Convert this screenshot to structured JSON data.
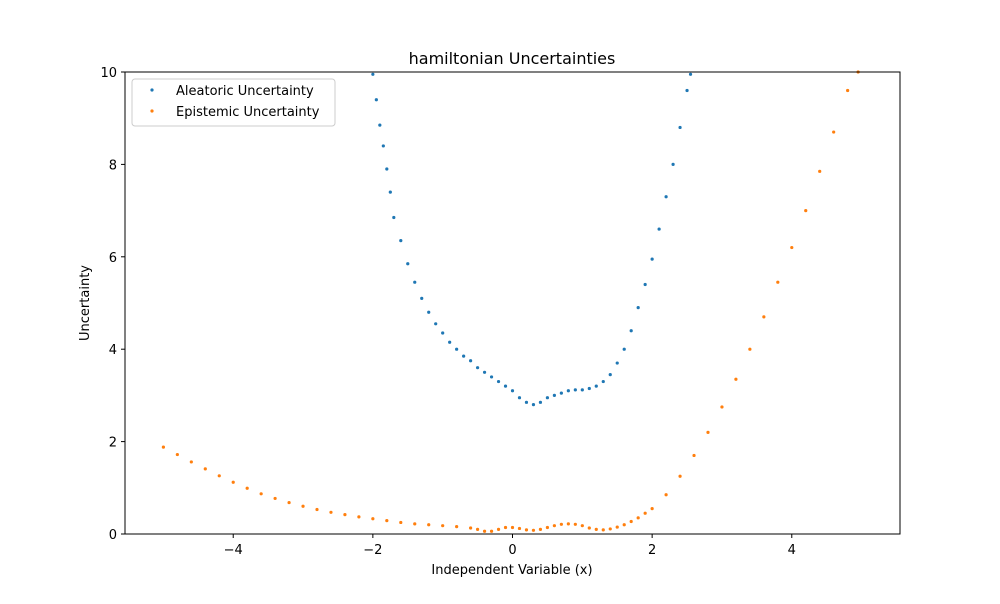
{
  "chart_data": {
    "type": "scatter",
    "title": "hamiltonian Uncertainties",
    "xlabel": "Independent Variable (x)",
    "ylabel": "Uncertainty",
    "xlim": [
      -5.55,
      5.55
    ],
    "ylim": [
      0,
      10
    ],
    "xticks": [
      -4,
      -2,
      0,
      2,
      4
    ],
    "xtick_labels": [
      "−4",
      "−2",
      "0",
      "2",
      "4"
    ],
    "yticks": [
      0,
      2,
      4,
      6,
      8,
      10
    ],
    "ytick_labels": [
      "0",
      "2",
      "4",
      "6",
      "8",
      "10"
    ],
    "grid": false,
    "legend_position": "upper-left",
    "series": [
      {
        "name": "Aleatoric Uncertainty",
        "color": "#1f77b4",
        "x": [
          -2.0,
          -1.95,
          -1.9,
          -1.85,
          -1.8,
          -1.75,
          -1.7,
          -1.6,
          -1.5,
          -1.4,
          -1.3,
          -1.2,
          -1.1,
          -1.0,
          -0.9,
          -0.8,
          -0.7,
          -0.6,
          -0.5,
          -0.4,
          -0.3,
          -0.2,
          -0.1,
          0.0,
          0.1,
          0.2,
          0.3,
          0.4,
          0.5,
          0.6,
          0.7,
          0.8,
          0.9,
          1.0,
          1.1,
          1.2,
          1.3,
          1.4,
          1.5,
          1.6,
          1.7,
          1.8,
          1.9,
          2.0,
          2.1,
          2.2,
          2.3,
          2.4,
          2.5,
          2.55
        ],
        "y": [
          9.95,
          9.4,
          8.85,
          8.4,
          7.9,
          7.4,
          6.85,
          6.35,
          5.85,
          5.45,
          5.1,
          4.8,
          4.55,
          4.35,
          4.15,
          4.0,
          3.85,
          3.75,
          3.6,
          3.5,
          3.4,
          3.3,
          3.2,
          3.1,
          2.95,
          2.85,
          2.8,
          2.85,
          2.95,
          3.0,
          3.05,
          3.1,
          3.12,
          3.12,
          3.15,
          3.2,
          3.3,
          3.45,
          3.7,
          4.0,
          4.4,
          4.9,
          5.4,
          5.95,
          6.6,
          7.3,
          8.0,
          8.8,
          9.6,
          9.95
        ]
      },
      {
        "name": "Epistemic Uncertainty",
        "color": "#ff7f0e",
        "x": [
          -5.0,
          -4.8,
          -4.6,
          -4.4,
          -4.2,
          -4.0,
          -3.8,
          -3.6,
          -3.4,
          -3.2,
          -3.0,
          -2.8,
          -2.6,
          -2.4,
          -2.2,
          -2.0,
          -1.8,
          -1.6,
          -1.4,
          -1.2,
          -1.0,
          -0.8,
          -0.6,
          -0.5,
          -0.4,
          -0.3,
          -0.2,
          -0.1,
          0.0,
          0.1,
          0.2,
          0.3,
          0.4,
          0.5,
          0.6,
          0.7,
          0.8,
          0.9,
          1.0,
          1.1,
          1.2,
          1.3,
          1.4,
          1.5,
          1.6,
          1.7,
          1.8,
          1.9,
          2.0,
          2.2,
          2.4,
          2.6,
          2.8,
          3.0,
          3.2,
          3.4,
          3.6,
          3.8,
          4.0,
          4.2,
          4.4,
          4.6,
          4.8,
          4.95
        ],
        "y": [
          1.88,
          1.72,
          1.56,
          1.41,
          1.26,
          1.12,
          0.99,
          0.87,
          0.77,
          0.68,
          0.6,
          0.53,
          0.47,
          0.42,
          0.37,
          0.33,
          0.29,
          0.25,
          0.22,
          0.2,
          0.18,
          0.16,
          0.13,
          0.1,
          0.06,
          0.06,
          0.1,
          0.14,
          0.14,
          0.12,
          0.09,
          0.08,
          0.1,
          0.14,
          0.18,
          0.21,
          0.22,
          0.21,
          0.18,
          0.13,
          0.1,
          0.09,
          0.11,
          0.15,
          0.2,
          0.27,
          0.35,
          0.45,
          0.55,
          0.85,
          1.25,
          1.7,
          2.2,
          2.75,
          3.35,
          4.0,
          4.7,
          5.45,
          6.2,
          7.0,
          7.85,
          8.7,
          9.6,
          10.0
        ]
      }
    ]
  }
}
